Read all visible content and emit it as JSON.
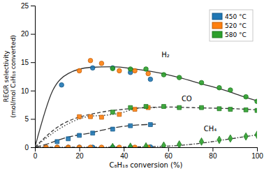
{
  "chart_data": {
    "type": "scatter",
    "xlabel": "C₈H₁₈ conversion (%)",
    "ylabel": "REGR selectivity\n(mol/mol C₈H₁₈ converted)",
    "xlim": [
      0,
      100
    ],
    "ylim": [
      0,
      25
    ],
    "xticks": [
      0,
      20,
      40,
      60,
      80,
      100
    ],
    "yticks": [
      0,
      5,
      10,
      15,
      20,
      25
    ],
    "legend": "top-right",
    "series": [
      {
        "type": "line",
        "line_style": "solid",
        "x": [
          0,
          8,
          15,
          25,
          35,
          45,
          55,
          65,
          75,
          85,
          95,
          100
        ],
        "values": [
          0,
          10,
          13,
          14.1,
          14.2,
          13.8,
          13.2,
          12.3,
          11.2,
          10.1,
          8.8,
          8.2
        ]
      },
      {
        "type": "line",
        "line_style": "long-dashed",
        "x": [
          0,
          5,
          10,
          15,
          20,
          25,
          30,
          35,
          40,
          45,
          50,
          55
        ],
        "values": [
          0,
          0.5,
          1.2,
          1.8,
          2.2,
          2.5,
          3.0,
          3.4,
          3.7,
          3.9,
          4.0,
          4.1
        ]
      },
      {
        "type": "line",
        "line_style": "dotted",
        "x": [
          0,
          10,
          20,
          25,
          30,
          35,
          40,
          45,
          50,
          55
        ],
        "values": [
          0,
          3.0,
          5.0,
          5.5,
          5.6,
          5.8,
          6.2,
          6.8,
          7.0,
          7.0
        ]
      },
      {
        "type": "line",
        "line_style": "dashed",
        "x": [
          0,
          10,
          30,
          40,
          50,
          60,
          70,
          80,
          90,
          100
        ],
        "values": [
          0,
          3.5,
          6.2,
          6.7,
          7.0,
          7.1,
          7.0,
          6.9,
          6.8,
          6.6
        ]
      },
      {
        "type": "line",
        "line_style": "dashdot",
        "x": [
          0,
          20,
          40,
          50,
          60,
          70,
          80,
          90,
          100
        ],
        "values": [
          0,
          0.0,
          0.05,
          0.1,
          0.2,
          0.5,
          1.0,
          1.6,
          2.2
        ]
      },
      {
        "type": "scatter",
        "name": "450 °C",
        "marker": "circle",
        "x": [
          12,
          26,
          35,
          43,
          52
        ],
        "values": [
          11.0,
          14.0,
          14.0,
          13.2,
          12.0
        ]
      },
      {
        "type": "scatter",
        "name": "520 °C",
        "marker": "circle",
        "x": [
          20,
          25,
          30,
          38,
          45,
          51
        ],
        "values": [
          13.5,
          15.3,
          14.8,
          13.5,
          13.5,
          13.0
        ]
      },
      {
        "type": "scatter",
        "name": "580 °C",
        "marker": "circle",
        "x": [
          35,
          43,
          50,
          58,
          65,
          75,
          83,
          88,
          95,
          100
        ],
        "values": [
          13.9,
          13.8,
          13.8,
          12.8,
          12.3,
          11.4,
          10.5,
          10.1,
          8.9,
          8.1
        ]
      },
      {
        "type": "scatter",
        "name": "450 °C",
        "marker": "square",
        "x": [
          10,
          15,
          20,
          26,
          35,
          43,
          52
        ],
        "values": [
          1.0,
          1.5,
          2.1,
          2.5,
          3.2,
          3.8,
          4.0
        ]
      },
      {
        "type": "scatter",
        "name": "520 °C",
        "marker": "square",
        "x": [
          20,
          25,
          30,
          38,
          45,
          51
        ],
        "values": [
          5.4,
          5.4,
          5.3,
          5.8,
          6.7,
          7.0
        ]
      },
      {
        "type": "scatter",
        "name": "580 °C",
        "marker": "square",
        "x": [
          35,
          43,
          50,
          58,
          65,
          75,
          83,
          88,
          95,
          100
        ],
        "values": [
          6.2,
          7.0,
          7.2,
          7.2,
          7.0,
          7.0,
          6.8,
          6.7,
          6.6,
          6.5
        ]
      },
      {
        "type": "scatter",
        "name": "450 °C",
        "marker": "circle",
        "x": [
          5,
          10,
          15,
          20,
          26,
          35,
          43,
          52
        ],
        "values": [
          0.0,
          0.0,
          0.0,
          0.0,
          0.0,
          0.0,
          0.0,
          0.05
        ]
      },
      {
        "type": "scatter",
        "name": "520 °C",
        "marker": "circle",
        "x": [
          5,
          10,
          15,
          20,
          25,
          30,
          38,
          45,
          51
        ],
        "values": [
          0.0,
          0.0,
          0.0,
          0.0,
          0.0,
          0.0,
          0.0,
          0.0,
          0.0
        ]
      },
      {
        "type": "scatter",
        "name": "580 °C",
        "marker": "diamond",
        "x": [
          35,
          43,
          50,
          58,
          65,
          75,
          83,
          88,
          95,
          100
        ],
        "values": [
          0.05,
          0.1,
          0.15,
          0.3,
          0.5,
          1.0,
          1.3,
          1.55,
          1.9,
          2.2
        ]
      }
    ],
    "annotations": [
      {
        "text": "H₂",
        "x": 57,
        "y": 16.2
      },
      {
        "text": "CO",
        "x": 66,
        "y": 8.5
      },
      {
        "text": "CH₄",
        "x": 76,
        "y": 3.2
      }
    ]
  }
}
